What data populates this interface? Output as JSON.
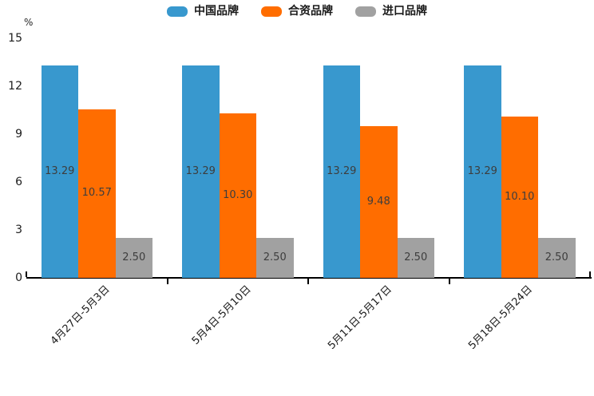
{
  "chart_data": {
    "type": "bar",
    "title": "",
    "unit_label": "%",
    "categories": [
      "4月27日-5月3日",
      "5月4日-5月10日",
      "5月11日-5月17日",
      "5月18日-5月24日"
    ],
    "series": [
      {
        "name": "中国品牌",
        "color": "#3898CE",
        "values": [
          13.29,
          13.29,
          13.29,
          13.29
        ]
      },
      {
        "name": "合资品牌",
        "color": "#FF6D00",
        "values": [
          10.57,
          10.3,
          9.48,
          10.1
        ]
      },
      {
        "name": "进口品牌",
        "color": "#A1A1A1",
        "values": [
          2.5,
          2.5,
          2.5,
          2.5
        ]
      }
    ],
    "ylim": [
      0,
      15
    ],
    "yticks": [
      0,
      3,
      6,
      9,
      12,
      15
    ],
    "grid": false,
    "legend_position": "top-center",
    "value_labels": "inside-center-two-decimals",
    "xlabel_rotation_deg": -45,
    "axis_color": "#000000"
  }
}
